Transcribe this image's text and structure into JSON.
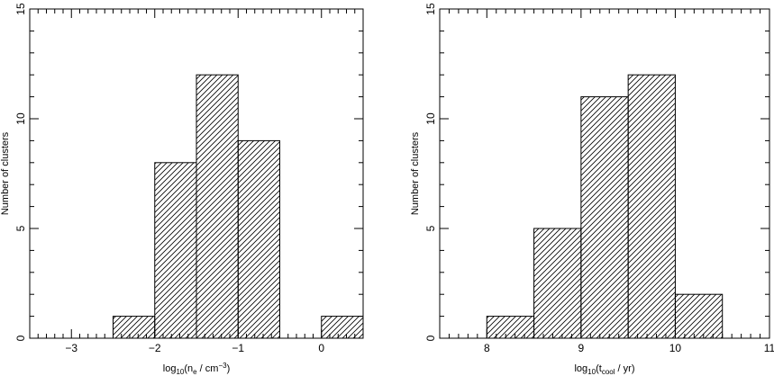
{
  "chart_data": [
    {
      "type": "bar",
      "xlabel": {
        "prefix": "log",
        "prefix_sub": "10",
        "open": "(n",
        "var_sub": "e",
        "mid": " / cm",
        "sup": "−3",
        "close": ")"
      },
      "ylabel": "Number of clusters",
      "xlim": [
        -3.5,
        0.5
      ],
      "ylim": [
        0,
        15
      ],
      "xticks": [
        -3,
        -2,
        -1,
        0
      ],
      "xtick_labels": [
        "−3",
        "−2",
        "−1",
        "0"
      ],
      "yticks": [
        0,
        5,
        10,
        15
      ],
      "ytick_labels": [
        "0",
        "5",
        "10",
        "15"
      ],
      "bins": [
        {
          "x0": -2.5,
          "x1": -2.0,
          "count": 1
        },
        {
          "x0": -2.0,
          "x1": -1.5,
          "count": 8
        },
        {
          "x0": -1.5,
          "x1": -1.0,
          "count": 12
        },
        {
          "x0": -1.0,
          "x1": -0.5,
          "count": 9
        },
        {
          "x0": 0.0,
          "x1": 0.5,
          "count": 1
        }
      ],
      "fill": "hatched",
      "grid": false
    },
    {
      "type": "bar",
      "xlabel": {
        "prefix": "log",
        "prefix_sub": "10",
        "open": "(t",
        "var_sub": "cool",
        "mid": " / yr",
        "sup": "",
        "close": ")"
      },
      "ylabel": "Number of clusters",
      "xlim": [
        7.5,
        11
      ],
      "ylim": [
        0,
        15
      ],
      "xticks": [
        8,
        9,
        10,
        11
      ],
      "xtick_labels": [
        "8",
        "9",
        "10",
        "11"
      ],
      "yticks": [
        0,
        5,
        10,
        15
      ],
      "ytick_labels": [
        "0",
        "5",
        "10",
        "15"
      ],
      "bins": [
        {
          "x0": 8.0,
          "x1": 8.5,
          "count": 1
        },
        {
          "x0": 8.5,
          "x1": 9.0,
          "count": 5
        },
        {
          "x0": 9.0,
          "x1": 9.5,
          "count": 11
        },
        {
          "x0": 9.5,
          "x1": 10.0,
          "count": 12
        },
        {
          "x0": 10.0,
          "x1": 10.5,
          "count": 2
        }
      ],
      "fill": "hatched",
      "grid": false
    }
  ]
}
